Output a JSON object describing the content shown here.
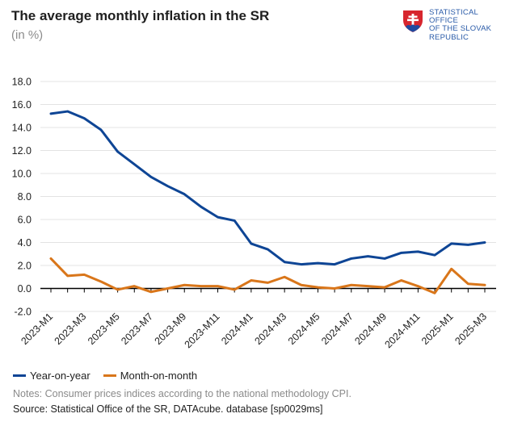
{
  "header": {
    "title": "The average monthly inflation in the SR",
    "subtitle": "(in %)"
  },
  "logo": {
    "lines": [
      "STATISTICAL",
      "OFFICE",
      "OF THE SLOVAK",
      "REPUBLIC"
    ],
    "icon": "slovak-coat-of-arms-icon"
  },
  "colors": {
    "yoy": "#0e4595",
    "mom": "#d9761a",
    "grid": "#e3e3e3",
    "zero": "#000000"
  },
  "chart_data": {
    "type": "line",
    "title": "The average monthly inflation in the SR",
    "ylabel": "(in %)",
    "xlabel": "",
    "ylim": [
      -2.0,
      18.0
    ],
    "yticks": [
      -2.0,
      0.0,
      2.0,
      4.0,
      6.0,
      8.0,
      10.0,
      12.0,
      14.0,
      16.0,
      18.0
    ],
    "ytick_labels": [
      "-2.0",
      "0.0",
      "2.0",
      "4.0",
      "6.0",
      "8.0",
      "10.0",
      "12.0",
      "14.0",
      "16.0",
      "18.0"
    ],
    "grid": true,
    "categories": [
      "2023-M1",
      "2023-M2",
      "2023-M3",
      "2023-M4",
      "2023-M5",
      "2023-M6",
      "2023-M7",
      "2023-M8",
      "2023-M9",
      "2023-M10",
      "2023-M11",
      "2023-M12",
      "2024-M1",
      "2024-M2",
      "2024-M3",
      "2024-M4",
      "2024-M5",
      "2024-M6",
      "2024-M7",
      "2024-M8",
      "2024-M9",
      "2024-M10",
      "2024-M11",
      "2024-M12",
      "2025-M1",
      "2025-M2",
      "2025-M3"
    ],
    "xtick_labels": [
      "2023-M1",
      "",
      "2023-M3",
      "",
      "2023-M5",
      "",
      "2023-M7",
      "",
      "2023-M9",
      "",
      "2023-M11",
      "",
      "2024-M1",
      "",
      "2024-M3",
      "",
      "2024-M5",
      "",
      "2024-M7",
      "",
      "2024-M9",
      "",
      "2024-M11",
      "",
      "2025-M1",
      "",
      "2025-M3"
    ],
    "series": [
      {
        "name": "Year-on-year",
        "values": [
          15.2,
          15.4,
          14.8,
          13.8,
          11.9,
          10.8,
          9.7,
          8.9,
          8.2,
          7.1,
          6.2,
          5.9,
          3.9,
          3.4,
          2.3,
          2.1,
          2.2,
          2.1,
          2.6,
          2.8,
          2.6,
          3.1,
          3.2,
          2.9,
          3.9,
          3.8,
          4.0
        ]
      },
      {
        "name": "Month-on-month",
        "values": [
          2.6,
          1.1,
          1.2,
          0.6,
          -0.1,
          0.2,
          -0.3,
          0.0,
          0.3,
          0.2,
          0.2,
          -0.1,
          0.7,
          0.5,
          1.0,
          0.3,
          0.1,
          0.0,
          0.3,
          0.2,
          0.1,
          0.7,
          0.2,
          -0.4,
          1.7,
          0.4,
          0.3
        ]
      }
    ]
  },
  "legend": {
    "yoy_label": "Year-on-year",
    "mom_label": "Month-on-month"
  },
  "footer": {
    "notes": "Notes: Consumer prices indices according to the national methodology CPI.",
    "source": "Source: Statistical Office of the SR, DATAcube. database [sp0029ms]"
  }
}
